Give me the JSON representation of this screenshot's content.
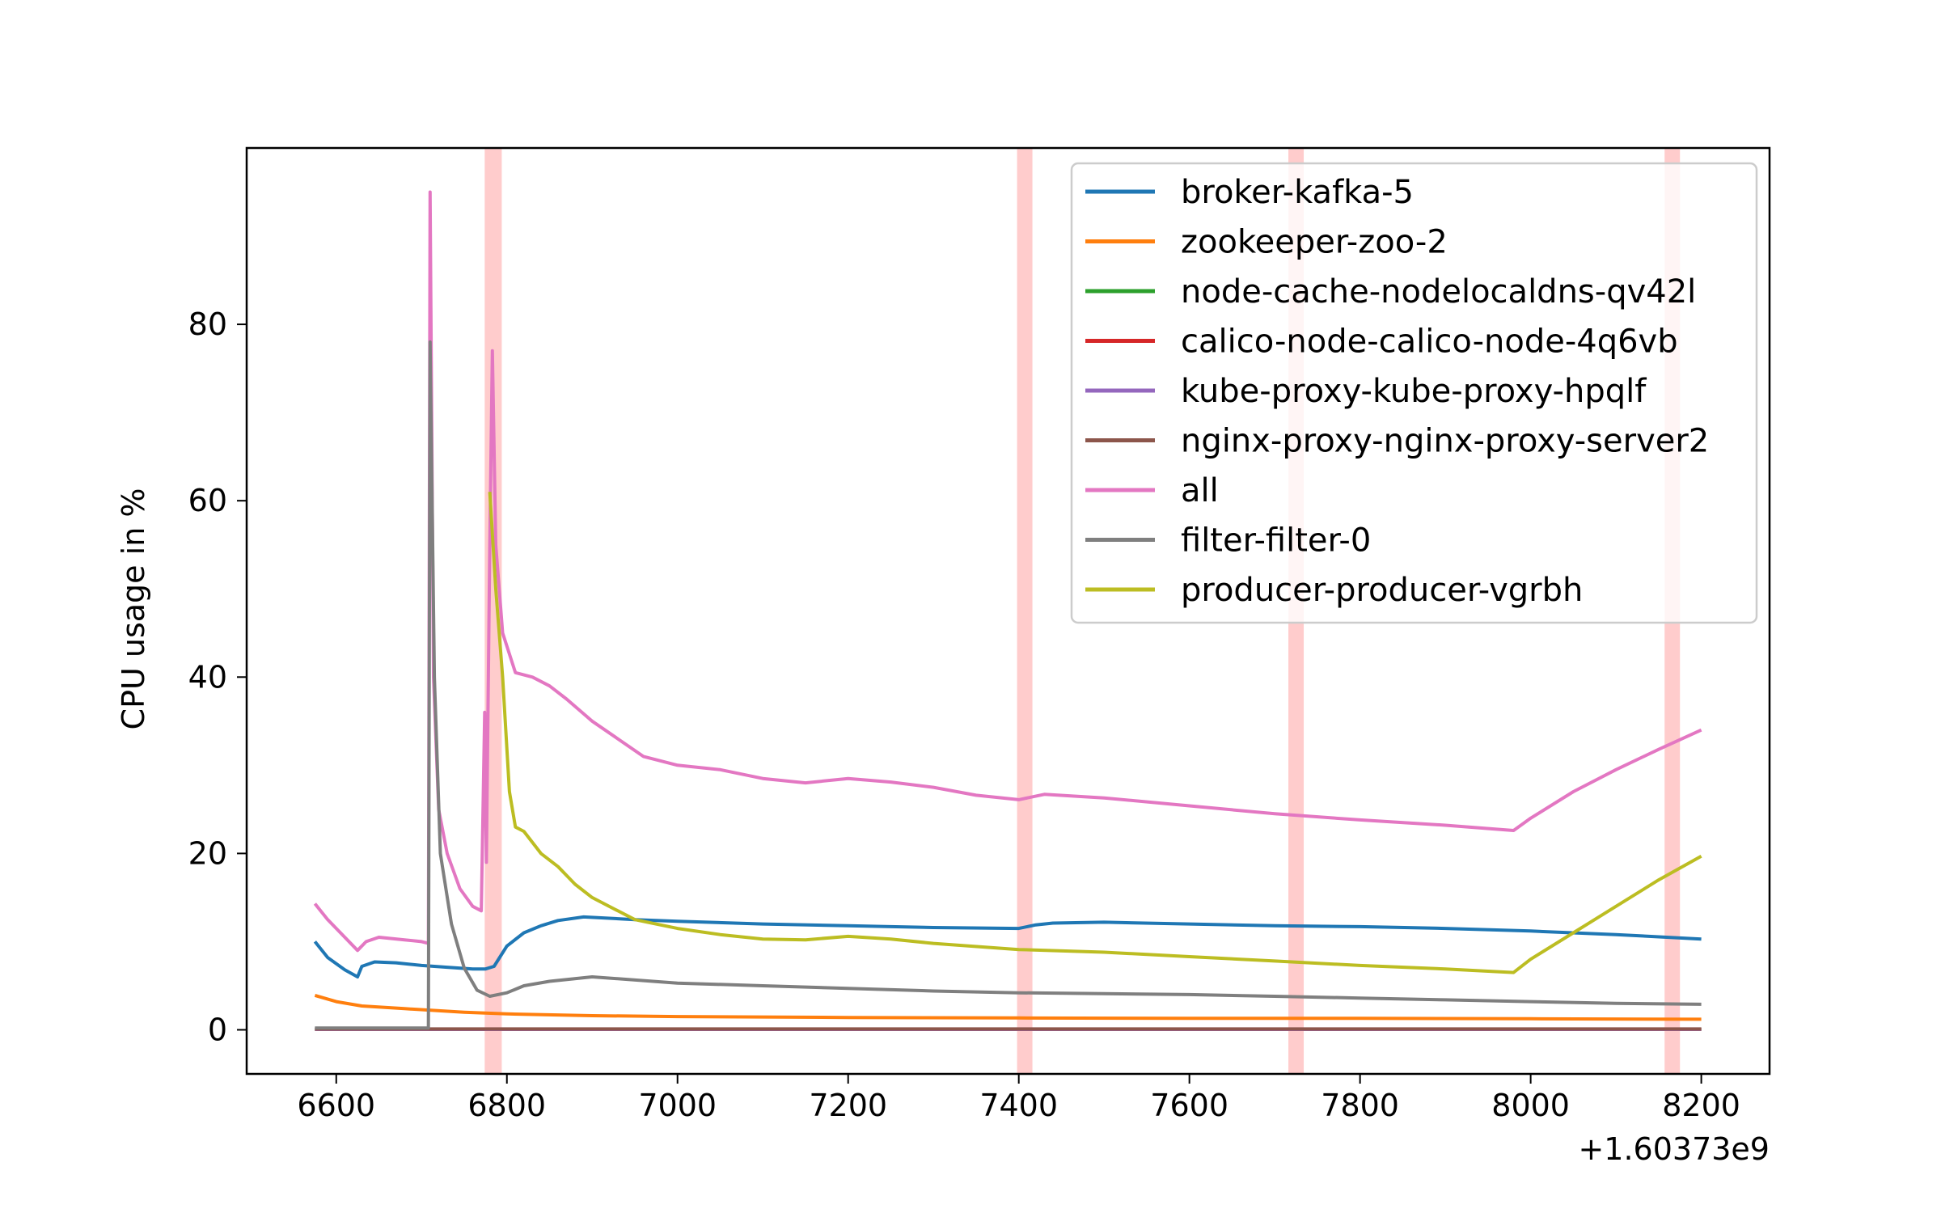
{
  "chart_data": {
    "type": "line",
    "title": "",
    "xlabel": "",
    "ylabel": "CPU usage in %",
    "x_offset_label": "+1.60373e9",
    "xlim": [
      6495,
      8280
    ],
    "ylim": [
      -5,
      100
    ],
    "x_ticks": [
      6600,
      6800,
      7000,
      7200,
      7400,
      7600,
      7800,
      8000,
      8200
    ],
    "y_ticks": [
      0,
      20,
      40,
      60,
      80
    ],
    "grid": false,
    "legend_position": "top-right",
    "highlight_bands": [
      {
        "x0": 6774,
        "x1": 6794,
        "color": "#ffcccc"
      },
      {
        "x0": 7398,
        "x1": 7416,
        "color": "#ffcccc"
      },
      {
        "x0": 7716,
        "x1": 7734,
        "color": "#ffcccc"
      },
      {
        "x0": 8157,
        "x1": 8175,
        "color": "#ffcccc"
      }
    ],
    "series": [
      {
        "name": "broker-kafka-5",
        "color": "#1f77b4",
        "points": [
          [
            6575,
            10
          ],
          [
            6590,
            8.2
          ],
          [
            6610,
            6.8
          ],
          [
            6625,
            6
          ],
          [
            6630,
            7.2
          ],
          [
            6645,
            7.7
          ],
          [
            6670,
            7.6
          ],
          [
            6700,
            7.3
          ],
          [
            6730,
            7.1
          ],
          [
            6760,
            6.9
          ],
          [
            6775,
            6.9
          ],
          [
            6785,
            7.2
          ],
          [
            6800,
            9.5
          ],
          [
            6820,
            11
          ],
          [
            6840,
            11.8
          ],
          [
            6860,
            12.4
          ],
          [
            6890,
            12.8
          ],
          [
            6950,
            12.5
          ],
          [
            7000,
            12.3
          ],
          [
            7100,
            12
          ],
          [
            7200,
            11.8
          ],
          [
            7300,
            11.6
          ],
          [
            7400,
            11.5
          ],
          [
            7420,
            11.9
          ],
          [
            7440,
            12.1
          ],
          [
            7500,
            12.2
          ],
          [
            7600,
            12
          ],
          [
            7700,
            11.8
          ],
          [
            7800,
            11.7
          ],
          [
            7900,
            11.5
          ],
          [
            8000,
            11.2
          ],
          [
            8100,
            10.8
          ],
          [
            8200,
            10.3
          ]
        ]
      },
      {
        "name": "zookeeper-zoo-2",
        "color": "#ff7f0e",
        "points": [
          [
            6575,
            3.9
          ],
          [
            6600,
            3.2
          ],
          [
            6630,
            2.7
          ],
          [
            6680,
            2.4
          ],
          [
            6750,
            2.0
          ],
          [
            6800,
            1.8
          ],
          [
            6900,
            1.6
          ],
          [
            7000,
            1.5
          ],
          [
            7200,
            1.4
          ],
          [
            7400,
            1.35
          ],
          [
            7600,
            1.3
          ],
          [
            7800,
            1.3
          ],
          [
            8000,
            1.25
          ],
          [
            8200,
            1.2
          ]
        ]
      },
      {
        "name": "node-cache-nodelocaldns-qv42l",
        "color": "#2ca02c",
        "points": [
          [
            6575,
            0.05
          ],
          [
            8200,
            0.05
          ]
        ]
      },
      {
        "name": "calico-node-calico-node-4q6vb",
        "color": "#d62728",
        "points": [
          [
            6575,
            0.05
          ],
          [
            8200,
            0.05
          ]
        ]
      },
      {
        "name": "kube-proxy-kube-proxy-hpqlf",
        "color": "#9467bd",
        "points": [
          [
            6575,
            0.05
          ],
          [
            8200,
            0.05
          ]
        ]
      },
      {
        "name": "nginx-proxy-nginx-proxy-server2",
        "color": "#8c564b",
        "points": [
          [
            6575,
            0.1
          ],
          [
            8200,
            0.1
          ]
        ]
      },
      {
        "name": "all",
        "color": "#e377c2",
        "points": [
          [
            6575,
            14.3
          ],
          [
            6590,
            12.5
          ],
          [
            6605,
            11
          ],
          [
            6625,
            9
          ],
          [
            6635,
            10
          ],
          [
            6650,
            10.5
          ],
          [
            6680,
            10.2
          ],
          [
            6700,
            10
          ],
          [
            6708,
            9.8
          ],
          [
            6710,
            95
          ],
          [
            6714,
            40
          ],
          [
            6720,
            25
          ],
          [
            6730,
            20
          ],
          [
            6745,
            16
          ],
          [
            6760,
            14
          ],
          [
            6770,
            13.5
          ],
          [
            6774,
            36
          ],
          [
            6776,
            19
          ],
          [
            6780,
            55
          ],
          [
            6783,
            77
          ],
          [
            6787,
            55
          ],
          [
            6795,
            45
          ],
          [
            6810,
            40.5
          ],
          [
            6830,
            40
          ],
          [
            6850,
            39
          ],
          [
            6870,
            37.5
          ],
          [
            6900,
            35
          ],
          [
            6930,
            33
          ],
          [
            6960,
            31
          ],
          [
            7000,
            30
          ],
          [
            7050,
            29.5
          ],
          [
            7100,
            28.5
          ],
          [
            7150,
            28
          ],
          [
            7200,
            28.5
          ],
          [
            7250,
            28.1
          ],
          [
            7300,
            27.5
          ],
          [
            7350,
            26.6
          ],
          [
            7400,
            26.1
          ],
          [
            7430,
            26.7
          ],
          [
            7500,
            26.3
          ],
          [
            7600,
            25.4
          ],
          [
            7700,
            24.5
          ],
          [
            7800,
            23.8
          ],
          [
            7900,
            23.2
          ],
          [
            7980,
            22.6
          ],
          [
            8000,
            24
          ],
          [
            8050,
            27
          ],
          [
            8100,
            29.5
          ],
          [
            8150,
            31.8
          ],
          [
            8200,
            34
          ]
        ]
      },
      {
        "name": "filter-filter-0",
        "color": "#7f7f7f",
        "points": [
          [
            6575,
            0.2
          ],
          [
            6700,
            0.2
          ],
          [
            6708,
            0.2
          ],
          [
            6710,
            78
          ],
          [
            6715,
            40
          ],
          [
            6722,
            20
          ],
          [
            6735,
            12
          ],
          [
            6750,
            7
          ],
          [
            6765,
            4.5
          ],
          [
            6780,
            3.8
          ],
          [
            6800,
            4.2
          ],
          [
            6820,
            5
          ],
          [
            6850,
            5.5
          ],
          [
            6900,
            6
          ],
          [
            7000,
            5.3
          ],
          [
            7100,
            5
          ],
          [
            7200,
            4.7
          ],
          [
            7300,
            4.4
          ],
          [
            7400,
            4.2
          ],
          [
            7500,
            4.1
          ],
          [
            7600,
            4.0
          ],
          [
            7700,
            3.8
          ],
          [
            7800,
            3.6
          ],
          [
            7900,
            3.4
          ],
          [
            8000,
            3.2
          ],
          [
            8100,
            3.0
          ],
          [
            8200,
            2.9
          ]
        ]
      },
      {
        "name": "producer-producer-vgrbh",
        "color": "#bcbd22",
        "points": [
          [
            6780,
            61
          ],
          [
            6787,
            50
          ],
          [
            6795,
            40
          ],
          [
            6803,
            27
          ],
          [
            6810,
            23
          ],
          [
            6820,
            22.5
          ],
          [
            6840,
            20
          ],
          [
            6860,
            18.5
          ],
          [
            6880,
            16.5
          ],
          [
            6900,
            15
          ],
          [
            6950,
            12.5
          ],
          [
            7000,
            11.5
          ],
          [
            7050,
            10.8
          ],
          [
            7100,
            10.3
          ],
          [
            7150,
            10.2
          ],
          [
            7200,
            10.6
          ],
          [
            7250,
            10.3
          ],
          [
            7300,
            9.8
          ],
          [
            7400,
            9.1
          ],
          [
            7500,
            8.8
          ],
          [
            7600,
            8.3
          ],
          [
            7700,
            7.8
          ],
          [
            7800,
            7.3
          ],
          [
            7900,
            6.9
          ],
          [
            7980,
            6.5
          ],
          [
            8000,
            8
          ],
          [
            8050,
            11
          ],
          [
            8100,
            14
          ],
          [
            8150,
            17
          ],
          [
            8200,
            19.7
          ]
        ]
      }
    ]
  }
}
